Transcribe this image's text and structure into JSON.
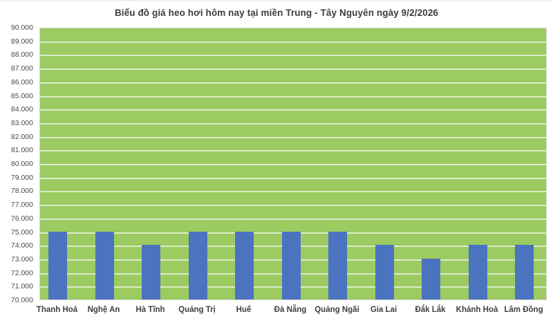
{
  "page": {
    "background": "#ffffff"
  },
  "chart_data": {
    "type": "bar",
    "title": "Biểu đồ giá heo hơi hôm nay tại miền Trung - Tây Nguyên ngày 9/2/2026",
    "categories": [
      "Thanh Hoá",
      "Nghệ An",
      "Hà Tĩnh",
      "Quảng Trị",
      "Huế",
      "Đà Nẵng",
      "Quảng Ngãi",
      "Gia Lai",
      "Đắk Lắk",
      "Khánh Hoà",
      "Lâm Đồng"
    ],
    "values": [
      75000,
      75000,
      74000,
      75000,
      75000,
      75000,
      75000,
      74000,
      73000,
      74000,
      74000
    ],
    "xlabel": "",
    "ylabel": "",
    "ylim": [
      70000,
      90000
    ],
    "ytick_step": 1000,
    "ytick_labels": [
      "90.000",
      "89.000",
      "88.000",
      "87.000",
      "86.000",
      "85.000",
      "84.000",
      "83.000",
      "82.000",
      "81.000",
      "80.000",
      "79.000",
      "78.000",
      "77.000",
      "76.000",
      "75.000",
      "74.000",
      "73.000",
      "72.000",
      "71.000",
      "70.000"
    ],
    "grid": true,
    "legend": false,
    "colors": {
      "bar": "#4C73C0",
      "plot_background": "#9BCB61",
      "gridline": "rgba(255,255,255,0.65)",
      "title_text": "#3D3D3D",
      "axis_text": "#4A4A4A"
    }
  }
}
